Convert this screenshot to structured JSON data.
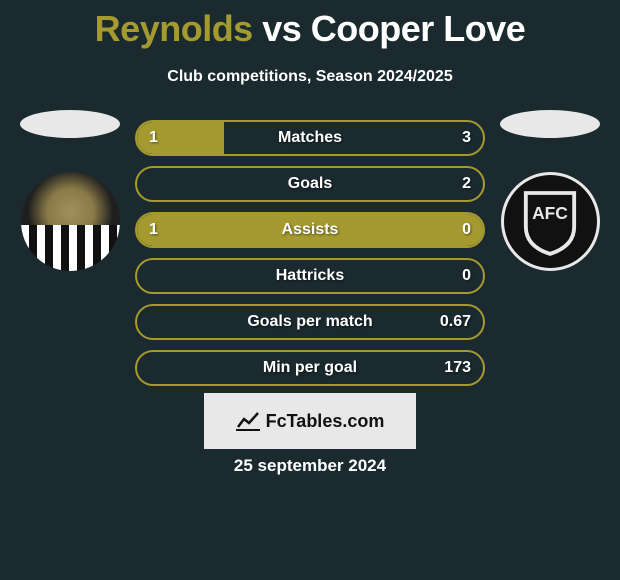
{
  "title": {
    "left": "Reynolds",
    "vs": "vs",
    "right": "Cooper Love"
  },
  "subtitle": "Club competitions, Season 2024/2025",
  "colors": {
    "background": "#1a2a2f",
    "accent": "#a59a2f",
    "bar_border": "#a59a2f",
    "bar_fill": "#a59a2f",
    "text": "#ffffff"
  },
  "bars": [
    {
      "label": "Matches",
      "left": "1",
      "right": "3",
      "left_pct": 25,
      "right_pct": 0
    },
    {
      "label": "Goals",
      "left": "",
      "right": "2",
      "left_pct": 0,
      "right_pct": 0
    },
    {
      "label": "Assists",
      "left": "1",
      "right": "0",
      "left_pct": 100,
      "right_pct": 0
    },
    {
      "label": "Hattricks",
      "left": "",
      "right": "0",
      "left_pct": 0,
      "right_pct": 0
    },
    {
      "label": "Goals per match",
      "left": "",
      "right": "0.67",
      "left_pct": 0,
      "right_pct": 0
    },
    {
      "label": "Min per goal",
      "left": "",
      "right": "173",
      "left_pct": 0,
      "right_pct": 0
    }
  ],
  "footer_logo_text": "FcTables.com",
  "footer_date": "25 september 2024"
}
